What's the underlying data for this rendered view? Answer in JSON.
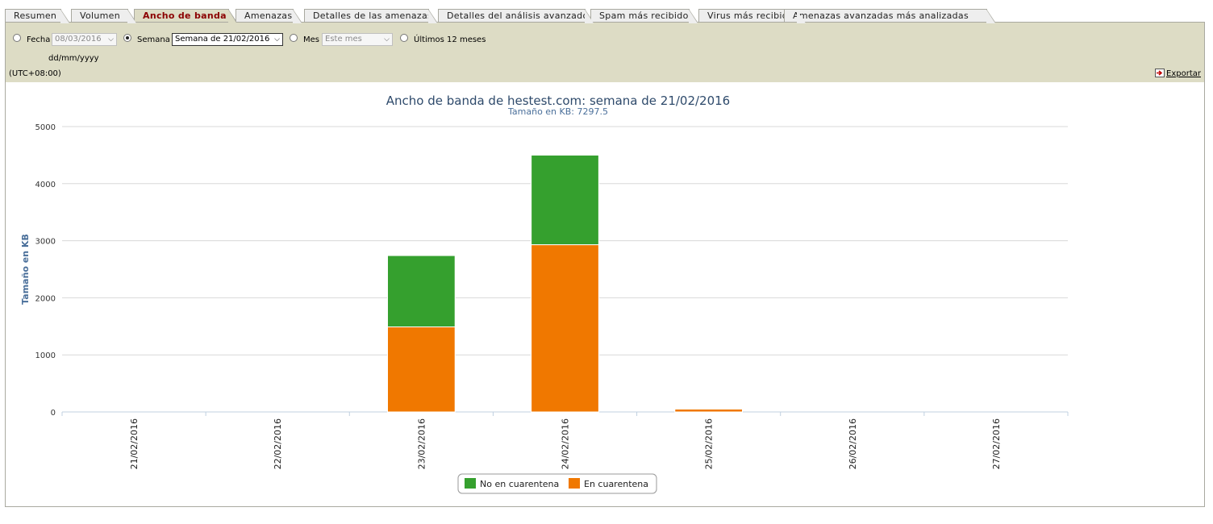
{
  "tabs": [
    {
      "label": "Resumen"
    },
    {
      "label": "Volumen"
    },
    {
      "label": "Ancho de banda"
    },
    {
      "label": "Amenazas"
    },
    {
      "label": "Detalles de las amenazas"
    },
    {
      "label": "Detalles del análisis avanzado"
    },
    {
      "label": "Spam más recibido"
    },
    {
      "label": "Virus más recibidos"
    },
    {
      "label": "Amenazas avanzadas más analizadas"
    }
  ],
  "filter": {
    "fecha_label": "Fecha",
    "fecha_value": "08/03/2016",
    "fecha_format": "dd/mm/yyyy",
    "semana_label": "Semana",
    "semana_value": "Semana de 21/02/2016",
    "mes_label": "Mes",
    "mes_value": "Este mes",
    "ultimos_label": "Últimos 12 meses",
    "timezone": "(UTC+08:00)",
    "export_label": "Exportar"
  },
  "colors": {
    "no_cuarentena": "#35a02e",
    "cuarentena": "#f07800",
    "title": "#2e4a6b",
    "axis_label": "#4a6f9a"
  },
  "chart_data": {
    "type": "bar",
    "stacked": true,
    "title": "Ancho de banda de hestest.com: semana de 21/02/2016",
    "subtitle": "Tamaño en KB: 7297.5",
    "xlabel": "",
    "ylabel": "Tamaño en KB",
    "ylim": [
      0,
      5000
    ],
    "yticks": [
      0,
      1000,
      2000,
      3000,
      4000,
      5000
    ],
    "grid": true,
    "legend_position": "bottom-center",
    "categories": [
      "21/02/2016",
      "22/02/2016",
      "23/02/2016",
      "24/02/2016",
      "25/02/2016",
      "26/02/2016",
      "27/02/2016"
    ],
    "series": [
      {
        "name": "En cuarentena",
        "values": [
          0,
          0,
          1490,
          2930,
          50,
          0,
          0
        ]
      },
      {
        "name": "No en cuarentena",
        "values": [
          0,
          0,
          1250,
          1570,
          0,
          0,
          0
        ]
      }
    ]
  }
}
